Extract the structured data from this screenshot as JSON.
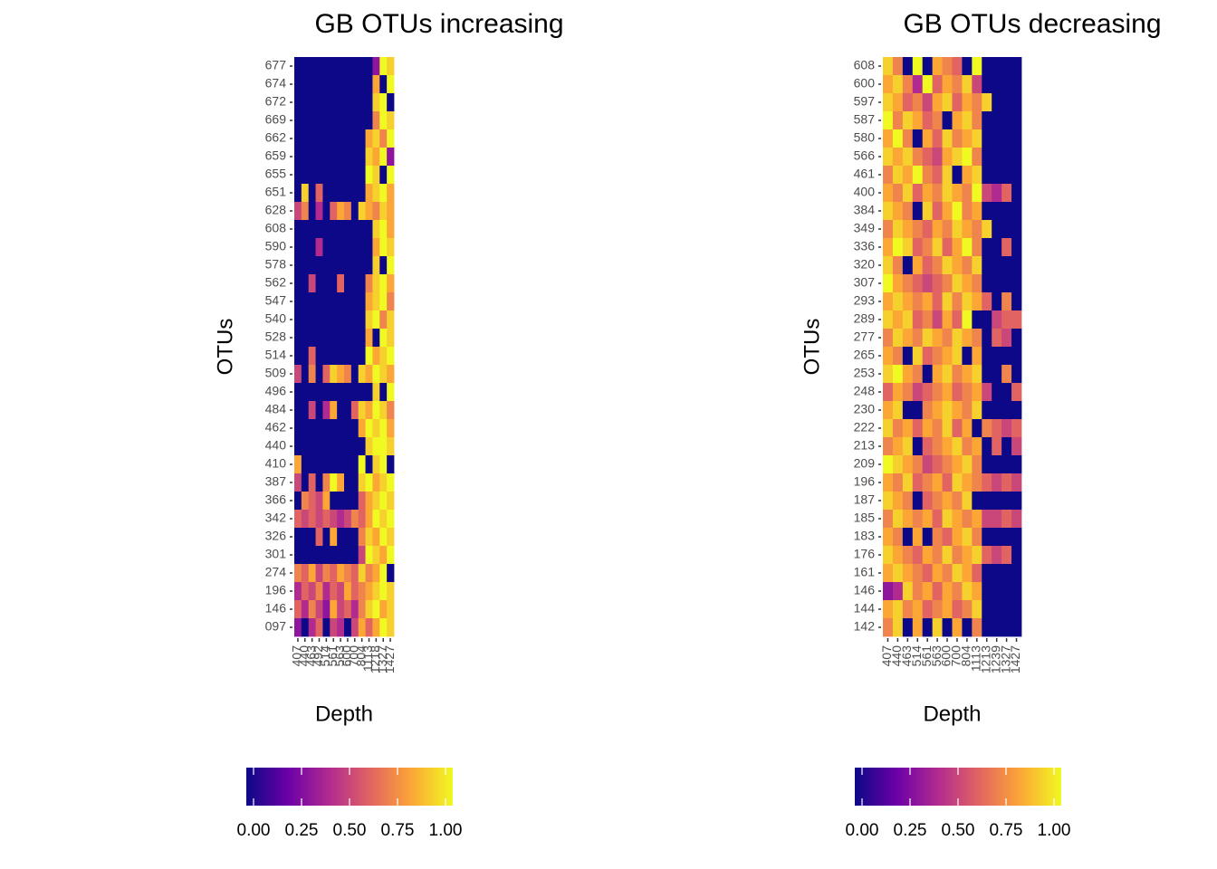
{
  "chart_data": [
    {
      "type": "heatmap",
      "title": "GB OTUs increasing",
      "x_label": "Depth",
      "y_label": "OTUs",
      "categories": [
        "407",
        "440",
        "463",
        "492",
        "514",
        "561",
        "563",
        "600",
        "700",
        "804",
        "1113",
        "1218",
        "1327",
        "1427"
      ],
      "rows": [
        "677",
        "674",
        "672",
        "669",
        "662",
        "659",
        "655",
        "651",
        "628",
        "608",
        "590",
        "578",
        "562",
        "547",
        "540",
        "528",
        "514",
        "509",
        "496",
        "484",
        "462",
        "440",
        "410",
        "387",
        "366",
        "342",
        "326",
        "301",
        "274",
        "196",
        "146",
        "097"
      ],
      "values": [
        [
          0,
          0,
          0,
          0,
          0,
          0,
          0,
          0,
          0,
          0,
          0,
          0.3,
          1,
          0.9
        ],
        [
          0,
          0,
          0,
          0,
          0,
          0,
          0,
          0,
          0,
          0,
          0,
          0.8,
          0,
          1
        ],
        [
          0,
          0,
          0,
          0,
          0,
          0,
          0,
          0,
          0,
          0,
          0,
          0.9,
          1,
          0
        ],
        [
          0,
          0,
          0,
          0,
          0,
          0,
          0,
          0,
          0,
          0,
          0,
          0.7,
          1,
          0.9
        ],
        [
          0,
          0,
          0,
          0,
          0,
          0,
          0,
          0,
          0,
          0,
          0.8,
          0.9,
          0.7,
          1
        ],
        [
          0,
          0,
          0,
          0,
          0,
          0,
          0,
          0,
          0,
          0,
          0.9,
          0.8,
          1,
          0.3
        ],
        [
          0,
          0,
          0,
          0,
          0,
          0,
          0,
          0,
          0,
          0,
          1,
          0.9,
          0,
          1
        ],
        [
          0,
          0.9,
          0,
          0.6,
          0,
          0,
          0,
          0,
          0,
          0,
          0.8,
          0.9,
          1,
          0.8
        ],
        [
          0.5,
          0.7,
          0,
          0.4,
          0,
          0.6,
          0.8,
          0.7,
          0,
          0.9,
          0.8,
          0.7,
          0.9,
          0.8
        ],
        [
          0,
          0,
          0,
          0,
          0,
          0,
          0,
          0,
          0,
          0,
          0,
          0.9,
          1,
          0.8
        ],
        [
          0,
          0,
          0,
          0.4,
          0,
          0,
          0,
          0,
          0,
          0,
          0,
          0.8,
          1,
          0.9
        ],
        [
          0,
          0,
          0,
          0,
          0,
          0,
          0,
          0,
          0,
          0,
          0,
          0.9,
          0,
          1
        ],
        [
          0,
          0,
          0.5,
          0,
          0,
          0,
          0.6,
          0,
          0,
          0,
          0.7,
          0.9,
          1,
          0.8
        ],
        [
          0,
          0,
          0,
          0,
          0,
          0,
          0,
          0,
          0,
          0,
          0.8,
          0.9,
          1,
          0.7
        ],
        [
          0,
          0,
          0,
          0,
          0,
          0,
          0,
          0,
          0,
          0,
          0.9,
          1,
          0.7,
          0.9
        ],
        [
          0,
          0,
          0,
          0,
          0,
          0,
          0,
          0,
          0,
          0,
          0.8,
          0,
          1,
          0.9
        ],
        [
          0,
          0,
          0.6,
          0,
          0,
          0,
          0,
          0,
          0,
          0,
          1,
          0.8,
          0.9,
          1
        ],
        [
          0.5,
          0,
          0.7,
          0,
          0.6,
          0.9,
          0.8,
          0.7,
          0,
          0.9,
          0.8,
          1,
          0.9,
          0.8
        ],
        [
          0,
          0,
          0,
          0,
          0,
          0,
          0,
          0,
          0,
          0,
          0,
          0.9,
          0,
          1
        ],
        [
          0,
          0,
          0.5,
          0,
          0.4,
          0.8,
          0,
          0,
          0.6,
          0.9,
          0.8,
          1,
          0.9,
          0.7
        ],
        [
          0,
          0,
          0,
          0,
          0,
          0,
          0,
          0,
          0,
          0.8,
          1,
          0.9,
          1,
          0.8
        ],
        [
          0,
          0,
          0,
          0,
          0,
          0,
          0,
          0,
          0,
          0,
          0.9,
          1,
          1,
          0.9
        ],
        [
          0.8,
          0,
          0,
          0,
          0,
          0,
          0,
          0,
          0,
          1,
          0,
          0.9,
          1,
          0
        ],
        [
          0.5,
          0,
          0.6,
          0,
          0.7,
          1,
          0.8,
          0,
          0,
          0.9,
          1,
          0.8,
          0.9,
          1
        ],
        [
          0,
          0.7,
          0.6,
          0.5,
          0.8,
          0,
          0,
          0,
          0,
          0.6,
          0.8,
          0.9,
          1,
          0.9
        ],
        [
          0.6,
          0.5,
          0.6,
          0.5,
          0.6,
          0.5,
          0.4,
          0.5,
          0.7,
          0.6,
          0.8,
          1,
          0.9,
          1
        ],
        [
          0,
          0,
          0,
          0.6,
          0,
          0.8,
          0,
          0,
          0,
          0.7,
          0.9,
          0.8,
          1,
          0.9
        ],
        [
          0,
          0,
          0,
          0,
          0,
          0,
          0,
          0,
          0,
          0.5,
          1,
          0.9,
          0.8,
          1
        ],
        [
          0.7,
          0.6,
          0.8,
          0.5,
          0.7,
          0.6,
          0.8,
          0.7,
          0.6,
          0.9,
          0.7,
          0.8,
          1,
          0
        ],
        [
          0.4,
          0.6,
          0.5,
          0.7,
          0.4,
          0.6,
          0.5,
          0.8,
          0.6,
          0.7,
          0.8,
          0.9,
          1,
          0.9
        ],
        [
          0.6,
          0.4,
          0.7,
          0.5,
          0.3,
          0.8,
          0.5,
          0.6,
          0.4,
          0.7,
          0.9,
          1,
          0.8,
          0.9
        ],
        [
          0.3,
          0,
          0.4,
          0.6,
          0,
          0.5,
          0.4,
          0,
          0.5,
          0.8,
          0.6,
          0.8,
          1,
          0.9
        ]
      ],
      "colormap": [
        "#0d0887",
        "#6a00a8",
        "#b12a90",
        "#e16462",
        "#fca636",
        "#f0f921"
      ],
      "clim": [
        0,
        1
      ],
      "cbar_ticks": [
        {
          "value": 0,
          "label": "0.00"
        },
        {
          "value": 0.25,
          "label": "0.25"
        },
        {
          "value": 0.5,
          "label": "0.50"
        },
        {
          "value": 0.75,
          "label": "0.75"
        },
        {
          "value": 1,
          "label": "1.00"
        }
      ]
    },
    {
      "type": "heatmap",
      "title": "GB OTUs decreasing",
      "x_label": "Depth",
      "y_label": "OTUs",
      "categories": [
        "407",
        "440",
        "463",
        "514",
        "561",
        "563",
        "600",
        "700",
        "804",
        "1113",
        "1213",
        "1239",
        "1327",
        "1427"
      ],
      "rows": [
        "608",
        "600",
        "597",
        "587",
        "580",
        "566",
        "461",
        "400",
        "384",
        "349",
        "336",
        "320",
        "307",
        "293",
        "289",
        "277",
        "265",
        "253",
        "248",
        "230",
        "222",
        "213",
        "209",
        "196",
        "187",
        "185",
        "183",
        "176",
        "161",
        "146",
        "144",
        "142"
      ],
      "values": [
        [
          0.9,
          0.7,
          0,
          1,
          0,
          0.8,
          0.7,
          0.6,
          0,
          1,
          0,
          0,
          0,
          0
        ],
        [
          0.8,
          0.9,
          0.7,
          0.4,
          1,
          0.6,
          0.8,
          0.7,
          0.9,
          0.5,
          0,
          0,
          0,
          0
        ],
        [
          0.9,
          0.8,
          0.6,
          0.7,
          0.5,
          0.8,
          0.9,
          0.6,
          0.8,
          0.7,
          0.9,
          0,
          0,
          0
        ],
        [
          1,
          0.7,
          0.9,
          0.8,
          0.6,
          0.7,
          0,
          0.8,
          0.9,
          0.7,
          0,
          0,
          0,
          0
        ],
        [
          0.8,
          1,
          0.7,
          0,
          0.8,
          0.6,
          0.9,
          0.7,
          0.8,
          0.9,
          0,
          0,
          0,
          0
        ],
        [
          0.9,
          0.8,
          0.9,
          0.7,
          0.6,
          0.5,
          0.8,
          0.9,
          1,
          0.7,
          0,
          0,
          0,
          0
        ],
        [
          0.7,
          0.9,
          0.8,
          1,
          0.7,
          0.6,
          0.9,
          0,
          0.8,
          0.9,
          0,
          0,
          0,
          0
        ],
        [
          0.8,
          0.7,
          0.9,
          0.6,
          0.8,
          0.7,
          0.9,
          0.8,
          0.7,
          1,
          0.5,
          0.4,
          0.6,
          0
        ],
        [
          0.9,
          0.8,
          0.7,
          0,
          0.9,
          0.6,
          0.8,
          1,
          0.7,
          0.8,
          0,
          0,
          0,
          0
        ],
        [
          0.7,
          0.9,
          0.8,
          0.7,
          0.6,
          0.8,
          0.7,
          0.9,
          0.8,
          0.7,
          0.9,
          0,
          0,
          0
        ],
        [
          0.8,
          1,
          0.9,
          0.6,
          0.7,
          0.9,
          0.6,
          0.8,
          1,
          0.7,
          0,
          0,
          0.6,
          0
        ],
        [
          0.9,
          0.7,
          0,
          0.8,
          0.6,
          0.7,
          0.9,
          0.8,
          0.7,
          0.9,
          0,
          0,
          0,
          0
        ],
        [
          1,
          0.8,
          0.7,
          0.6,
          0.5,
          0.6,
          0.7,
          0.9,
          0.8,
          0.7,
          0,
          0,
          0,
          0
        ],
        [
          0.8,
          0.9,
          0.8,
          0.7,
          0.8,
          0.6,
          0.9,
          0.7,
          0.9,
          0.8,
          0.6,
          0,
          0.7,
          0
        ],
        [
          0.9,
          0.8,
          0.9,
          0.6,
          0.7,
          0.5,
          0.8,
          0.6,
          1,
          0,
          0,
          0.5,
          0.6,
          0.6
        ],
        [
          0.7,
          0.9,
          0.8,
          0.7,
          0.9,
          0.8,
          0.7,
          0.9,
          0.8,
          0.7,
          0,
          0.6,
          0.5,
          0
        ],
        [
          0.8,
          0.7,
          0,
          0.9,
          0.6,
          0.7,
          0.8,
          0.9,
          0,
          0.8,
          0,
          0,
          0,
          0
        ],
        [
          0.9,
          1,
          0.8,
          0.7,
          0,
          0.8,
          0.9,
          0.7,
          0.8,
          0.9,
          0,
          0,
          0.7,
          0
        ],
        [
          0.6,
          0.8,
          0.7,
          0.5,
          0.6,
          0.7,
          0.8,
          0.6,
          0.7,
          0.8,
          0.5,
          0,
          0,
          0.6
        ],
        [
          0.8,
          0.9,
          0,
          0,
          0.7,
          0.8,
          0.9,
          0.8,
          0.7,
          0.9,
          0,
          0,
          0,
          0
        ],
        [
          0.9,
          0.7,
          0.8,
          0.6,
          0.8,
          0.7,
          0.9,
          0.6,
          0.8,
          0,
          0.7,
          0.6,
          0.5,
          0.6
        ],
        [
          0.7,
          0.8,
          0.9,
          0,
          0.6,
          0.7,
          0.8,
          0.9,
          0.7,
          0.8,
          0,
          0.6,
          0,
          0.5
        ],
        [
          1,
          0.9,
          0.8,
          0.7,
          0.5,
          0.6,
          0.7,
          0.8,
          0.9,
          0.7,
          0,
          0,
          0,
          0
        ],
        [
          0.8,
          0.7,
          0.9,
          0.6,
          0.7,
          0.8,
          0.6,
          0.9,
          0.8,
          0.7,
          0.6,
          0.5,
          0.6,
          0.5
        ],
        [
          0.9,
          0.8,
          0.7,
          0,
          0.6,
          0.7,
          0.8,
          0.7,
          0.9,
          0,
          0,
          0,
          0,
          0
        ],
        [
          0.7,
          0.9,
          0.8,
          0.7,
          0.8,
          0.6,
          0.9,
          0.8,
          0.7,
          0.8,
          0.5,
          0.5,
          0.6,
          0.5
        ],
        [
          0.8,
          0.7,
          0,
          0.8,
          0,
          0.7,
          0.6,
          0.8,
          0.9,
          0.7,
          0,
          0,
          0,
          0
        ],
        [
          0.9,
          0.8,
          0.7,
          0.6,
          0.8,
          0.7,
          0.9,
          0.7,
          0.8,
          0.9,
          0.6,
          0.5,
          0.6,
          0
        ],
        [
          0.8,
          0.9,
          0.8,
          0.7,
          0.6,
          0.8,
          0.7,
          0.9,
          0.8,
          0.6,
          0,
          0,
          0,
          0
        ],
        [
          0.3,
          0.4,
          0.9,
          0.7,
          0.8,
          0.6,
          0.8,
          0.7,
          0.9,
          0.8,
          0,
          0,
          0,
          0
        ],
        [
          0.8,
          0.9,
          0.7,
          0.8,
          0.6,
          0.7,
          0.8,
          0.6,
          0.7,
          0.9,
          0,
          0,
          0,
          0
        ],
        [
          0.7,
          0.9,
          0,
          0.8,
          0,
          0.9,
          0,
          0.8,
          0,
          0.7,
          0,
          0,
          0,
          0
        ]
      ],
      "colormap": [
        "#0d0887",
        "#6a00a8",
        "#b12a90",
        "#e16462",
        "#fca636",
        "#f0f921"
      ],
      "clim": [
        0,
        1
      ],
      "cbar_ticks": [
        {
          "value": 0,
          "label": "0.00"
        },
        {
          "value": 0.25,
          "label": "0.25"
        },
        {
          "value": 0.5,
          "label": "0.50"
        },
        {
          "value": 0.75,
          "label": "0.75"
        },
        {
          "value": 1,
          "label": "1.00"
        }
      ]
    }
  ]
}
